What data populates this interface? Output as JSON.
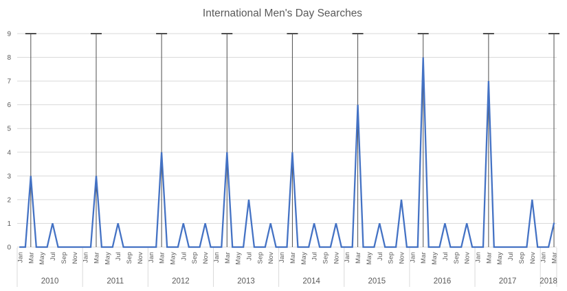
{
  "chart_data": {
    "type": "line",
    "title": "International Men's Day Searches",
    "xlabel": "",
    "ylabel": "",
    "ylim": [
      0,
      9
    ],
    "y_ticks": [
      0,
      1,
      2,
      3,
      4,
      5,
      6,
      7,
      8,
      9
    ],
    "grid": true,
    "legend": "none",
    "month_tick_labels": [
      "Jan",
      "Mar",
      "May",
      "Jul",
      "Sep",
      "Nov"
    ],
    "x_range": "Jan 2010 - Mar 2018",
    "years": [
      {
        "label": "2010",
        "values": [
          0,
          0,
          3,
          0,
          0,
          0,
          1,
          0,
          0,
          0,
          0,
          0
        ]
      },
      {
        "label": "2011",
        "values": [
          0,
          0,
          3,
          0,
          0,
          0,
          1,
          0,
          0,
          0,
          0,
          0
        ]
      },
      {
        "label": "2012",
        "values": [
          0,
          0,
          4,
          0,
          0,
          0,
          1,
          0,
          0,
          0,
          1,
          0
        ]
      },
      {
        "label": "2013",
        "values": [
          0,
          0,
          4,
          0,
          0,
          0,
          2,
          0,
          0,
          0,
          1,
          0
        ]
      },
      {
        "label": "2014",
        "values": [
          0,
          0,
          4,
          0,
          0,
          0,
          1,
          0,
          0,
          0,
          1,
          0
        ]
      },
      {
        "label": "2015",
        "values": [
          0,
          0,
          6,
          0,
          0,
          0,
          1,
          0,
          0,
          0,
          2,
          0
        ]
      },
      {
        "label": "2016",
        "values": [
          0,
          0,
          8,
          0,
          0,
          0,
          1,
          0,
          0,
          0,
          1,
          0
        ]
      },
      {
        "label": "2017",
        "values": [
          0,
          0,
          7,
          0,
          0,
          0,
          0,
          0,
          0,
          0,
          2,
          0
        ]
      },
      {
        "label": "2018",
        "values": [
          0,
          0,
          1
        ]
      }
    ],
    "march_markers": {
      "at_month_index": 2,
      "from_value": 0,
      "to_value": 9,
      "cap_at_top": true
    },
    "colors": {
      "series_line": "#4472C4",
      "gridline": "#D9D9D9",
      "marker_line": "#4d4d4d",
      "text": "#595959",
      "background": "#FFFFFF"
    }
  }
}
